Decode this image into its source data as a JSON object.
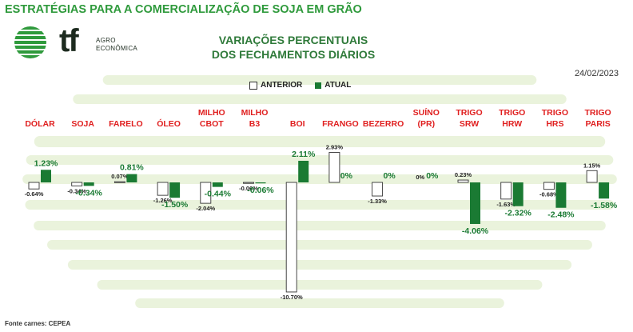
{
  "page_title": "ESTRATÉGIAS PARA A COMERCIALIZAÇÃO DE SOJA EM GRÃO",
  "logo": {
    "mark": "tf",
    "line1": "AGRO",
    "line2": "ECONÔMICA"
  },
  "chart_title": {
    "line1": "VARIAÇÕES PERCENTUAIS",
    "line2": "DOS FECHAMENTOS DIÁRIOS"
  },
  "date": "24/02/2023",
  "source": "Fonte carnes: CEPEA",
  "colors": {
    "title_green": "#2f9a3c",
    "bar_current": "#1a7a33",
    "category_red": "#e02020",
    "stripe": "#eaf3dc"
  },
  "chart_data": {
    "type": "bar",
    "series": [
      {
        "name": "ANTERIOR",
        "values": [
          -0.64,
          -0.34,
          0.07,
          -1.26,
          -2.04,
          -0.06,
          -10.7,
          2.93,
          -1.33,
          0,
          0.23,
          -1.63,
          -0.68,
          1.15
        ]
      },
      {
        "name": "ATUAL",
        "values": [
          1.23,
          -0.34,
          0.81,
          -1.5,
          -0.44,
          -0.06,
          2.11,
          0,
          0,
          0,
          -4.06,
          -2.32,
          -2.48,
          -1.58
        ]
      }
    ],
    "categories": [
      [
        "DÓLAR"
      ],
      [
        "SOJA"
      ],
      [
        "FARELO"
      ],
      [
        "ÓLEO"
      ],
      [
        "MILHO",
        "CBOT"
      ],
      [
        "MILHO",
        "B3"
      ],
      [
        "BOI"
      ],
      [
        "FRANGO"
      ],
      [
        "BEZERRO"
      ],
      [
        "SUÍNO",
        "(PR)"
      ],
      [
        "TRIGO",
        "SRW"
      ],
      [
        "TRIGO",
        "HRW"
      ],
      [
        "TRIGO",
        "HRS"
      ],
      [
        "TRIGO",
        "PARIS"
      ]
    ],
    "labels_prev": [
      "-0.64%",
      "-0.34%",
      "0.07%",
      "-1.26%",
      "-2.04%",
      "-0.06%",
      "-10.70%",
      "2.93%",
      "-1.33%",
      "0%",
      "0.23%",
      "-1.63%",
      "-0.68%",
      "1.15%"
    ],
    "labels_cur": [
      "1.23%",
      "-0.34%",
      "0.81%",
      "-1.50%",
      "-0.44%",
      "-0.06%",
      "2.11%",
      "0%",
      "0%",
      "0%",
      "-4.06%",
      "-2.32%",
      "-2.48%",
      "-1.58%"
    ],
    "unit": "%",
    "ylim": [
      -11,
      3.2
    ],
    "grid": false,
    "legend": "top-center"
  }
}
